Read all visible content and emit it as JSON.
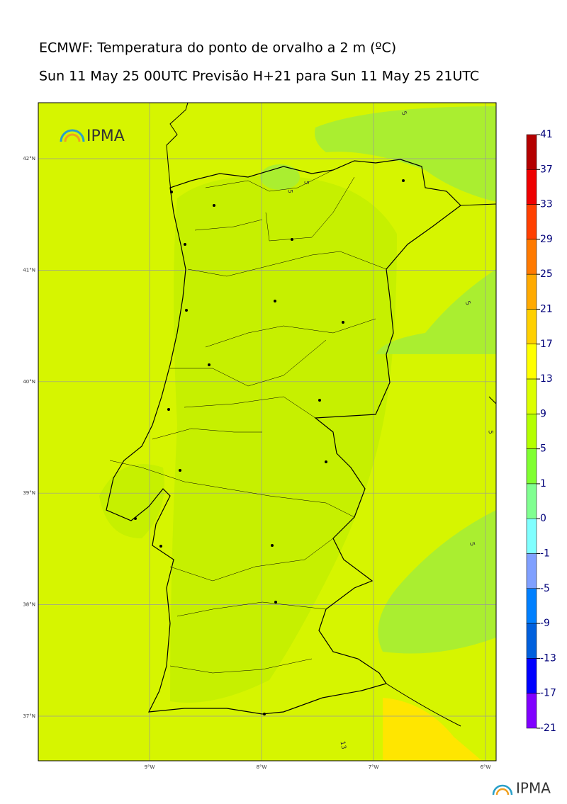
{
  "header": {
    "title": "ECMWF: Temperatura do ponto de orvalho a 2 m (ºC)",
    "subtitle": "Sun 11 May 25 00UTC Previsão H+21 para Sun 11 May 25 21UTC"
  },
  "map": {
    "lat_labels": [
      "42°N",
      "41°N",
      "40°N",
      "39°N",
      "38°N",
      "37°N"
    ],
    "lon_labels": [
      "9°W",
      "8°W",
      "7°W",
      "6°W"
    ],
    "contour_labels": [
      "5",
      "5",
      "5",
      "5",
      "5",
      "5",
      "13"
    ],
    "logo": "IPMA"
  },
  "colorbar": {
    "labels": [
      41,
      37,
      33,
      29,
      25,
      21,
      17,
      13,
      9,
      5,
      1,
      0,
      -1,
      -5,
      -9,
      -13,
      -17,
      -21
    ],
    "colors": [
      "#b40000",
      "#ee0000",
      "#ff4000",
      "#ff7a00",
      "#ffaa00",
      "#ffd000",
      "#ffff00",
      "#dcff00",
      "#b4ff00",
      "#80ff30",
      "#80ff90",
      "#80ffff",
      "#80a0ff",
      "#0080ff",
      "#0060dd",
      "#0000ff",
      "#8000ff"
    ]
  },
  "footer": {
    "logo": "IPMA"
  }
}
